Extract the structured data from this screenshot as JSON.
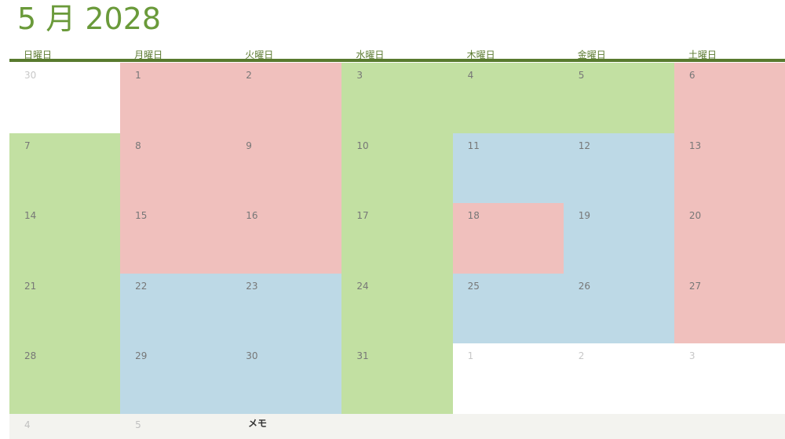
{
  "title": "5 月 2028",
  "weekdays": [
    "日曜日",
    "月曜日",
    "火曜日",
    "水曜日",
    "木曜日",
    "金曜日",
    "土曜日"
  ],
  "weeks": [
    [
      {
        "day": "30",
        "color": "#ffffff",
        "muted": true
      },
      {
        "day": "1",
        "color": "#f0c0bd"
      },
      {
        "day": "2",
        "color": "#f0c0bd"
      },
      {
        "day": "3",
        "color": "#c2e0a2"
      },
      {
        "day": "4",
        "color": "#c2e0a2"
      },
      {
        "day": "5",
        "color": "#c2e0a2"
      },
      {
        "day": "6",
        "color": "#f0c0bd"
      }
    ],
    [
      {
        "day": "7",
        "color": "#c2e0a2"
      },
      {
        "day": "8",
        "color": "#f0c0bd"
      },
      {
        "day": "9",
        "color": "#f0c0bd"
      },
      {
        "day": "10",
        "color": "#c2e0a2"
      },
      {
        "day": "11",
        "color": "#bdd9e6"
      },
      {
        "day": "12",
        "color": "#bdd9e6"
      },
      {
        "day": "13",
        "color": "#f0c0bd"
      }
    ],
    [
      {
        "day": "14",
        "color": "#c2e0a2"
      },
      {
        "day": "15",
        "color": "#f0c0bd"
      },
      {
        "day": "16",
        "color": "#f0c0bd"
      },
      {
        "day": "17",
        "color": "#c2e0a2"
      },
      {
        "day": "18",
        "color": "#f0c0bd"
      },
      {
        "day": "19",
        "color": "#bdd9e6"
      },
      {
        "day": "20",
        "color": "#f0c0bd"
      }
    ],
    [
      {
        "day": "21",
        "color": "#c2e0a2"
      },
      {
        "day": "22",
        "color": "#bdd9e6"
      },
      {
        "day": "23",
        "color": "#bdd9e6"
      },
      {
        "day": "24",
        "color": "#c2e0a2"
      },
      {
        "day": "25",
        "color": "#bdd9e6"
      },
      {
        "day": "26",
        "color": "#bdd9e6"
      },
      {
        "day": "27",
        "color": "#f0c0bd"
      }
    ],
    [
      {
        "day": "28",
        "color": "#c2e0a2"
      },
      {
        "day": "29",
        "color": "#bdd9e6"
      },
      {
        "day": "30",
        "color": "#bdd9e6"
      },
      {
        "day": "31",
        "color": "#c2e0a2"
      },
      {
        "day": "1",
        "color": "#ffffff",
        "muted": true
      },
      {
        "day": "2",
        "color": "#ffffff",
        "muted": true
      },
      {
        "day": "3",
        "color": "#ffffff",
        "muted": true
      }
    ]
  ],
  "extra_days": [
    "4",
    "5"
  ],
  "memo_label": "メモ"
}
